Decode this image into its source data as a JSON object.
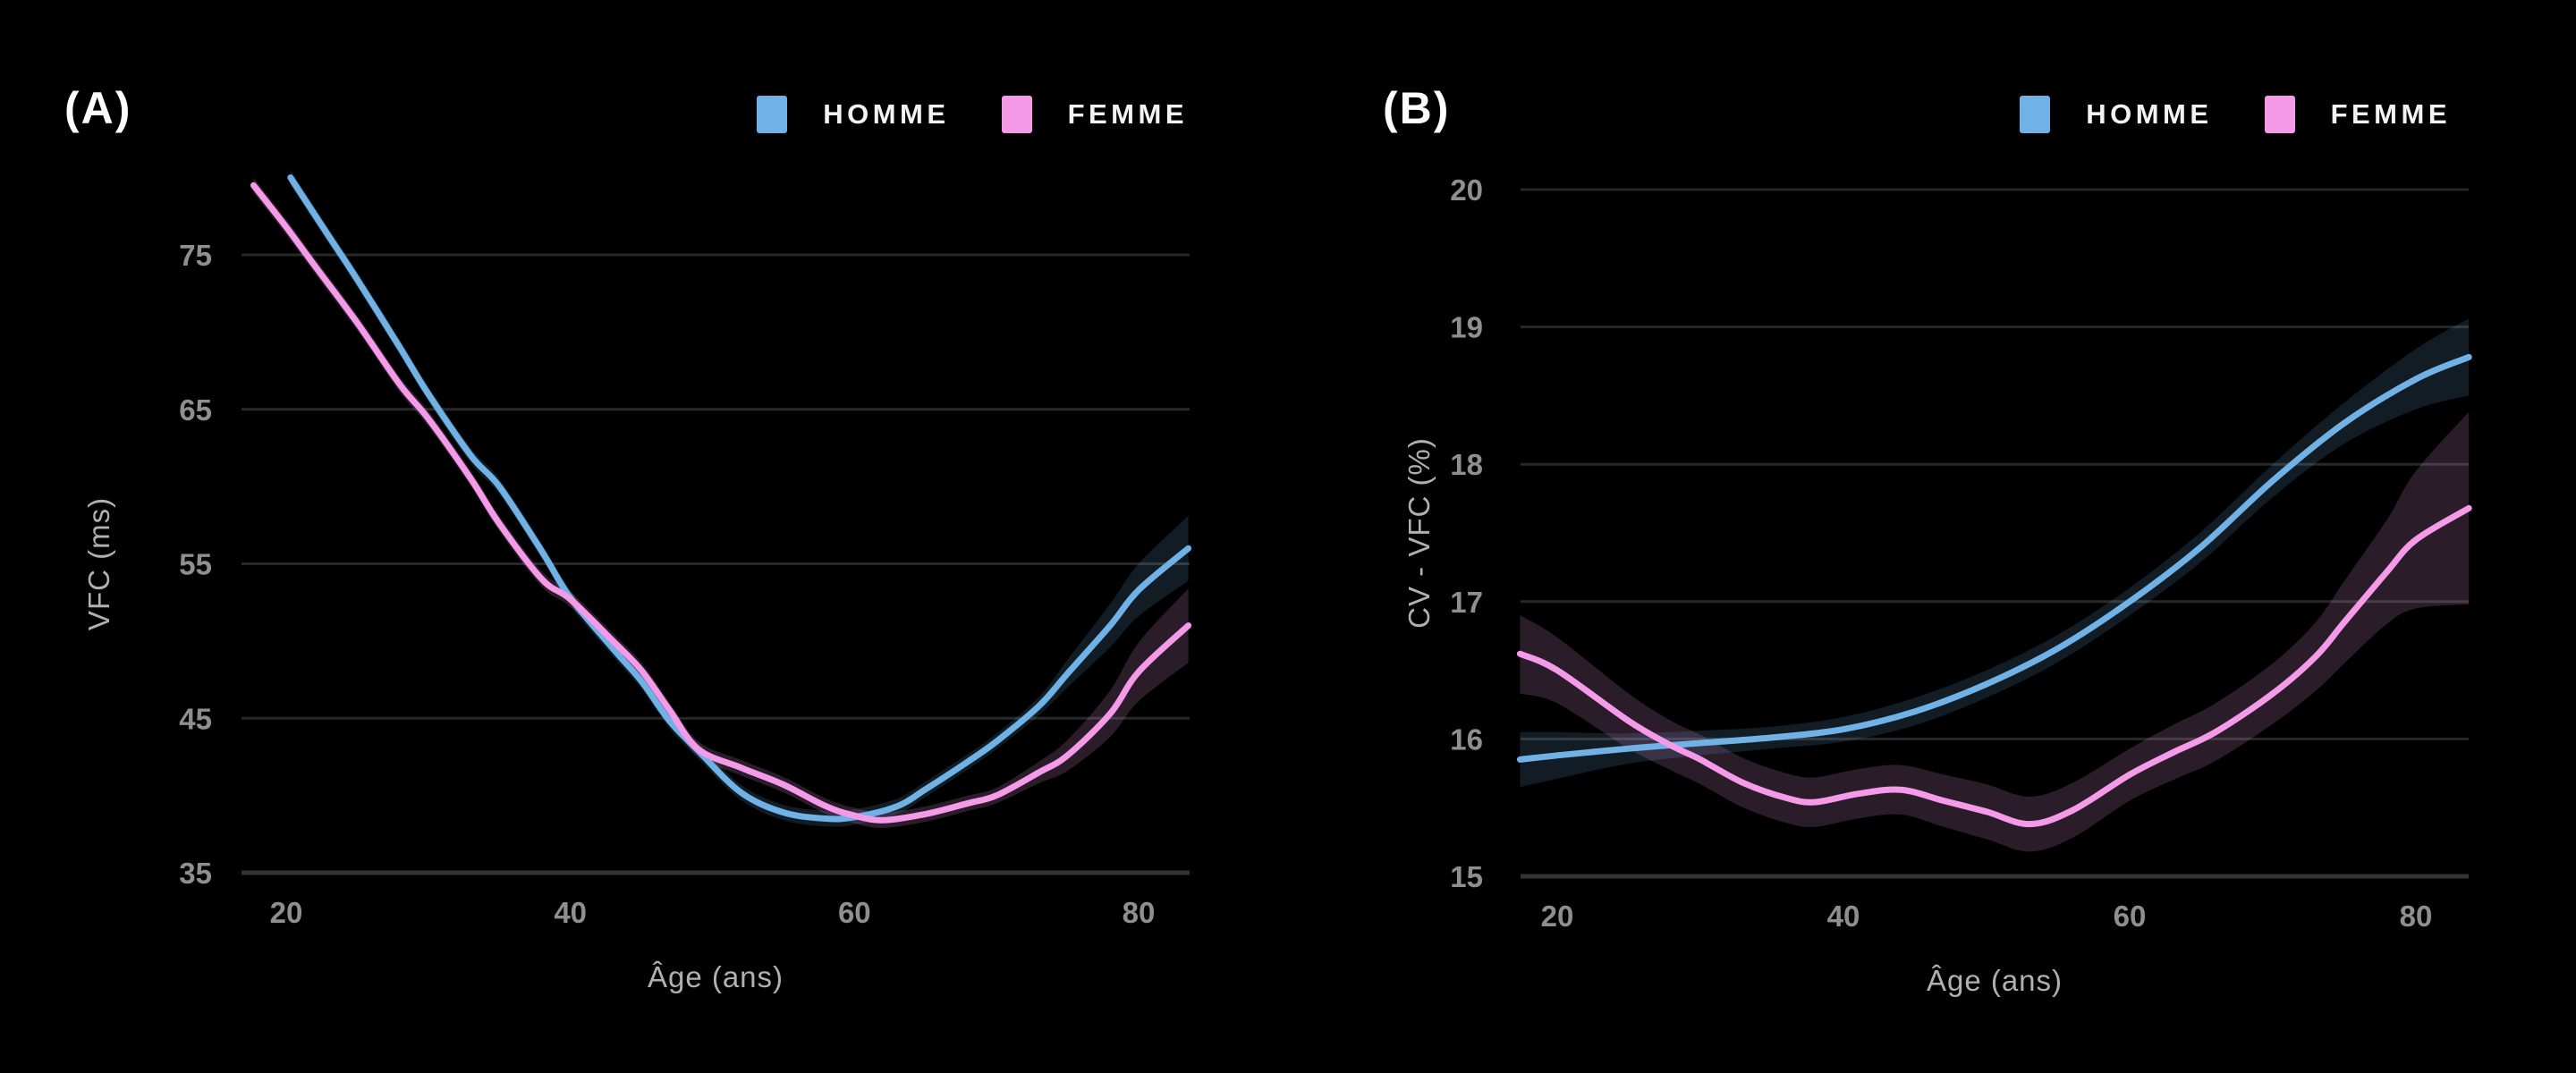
{
  "colors": {
    "background": "#000000",
    "gridline": "#282828",
    "axis_line": "#343434",
    "tick_label": "#8f8f8f",
    "axis_title": "#b0b0b0",
    "panel_label": "#ffffff",
    "legend_text": "#f3f3f3",
    "homme_line": "#70b2e6",
    "homme_band": "rgba(110,175,230,0.16)",
    "femme_line": "#f49ae9",
    "femme_band": "rgba(215,140,210,0.20)"
  },
  "chart_data": [
    {
      "type": "line",
      "panel": "(A)",
      "xlabel": "Âge (ans)",
      "ylabel": "VFC (ms)",
      "x_ticks": [
        20,
        40,
        60,
        80
      ],
      "y_ticks": [
        75,
        65,
        55,
        45,
        35
      ],
      "xlim": [
        17,
        84
      ],
      "ylim": [
        33,
        82
      ],
      "grid": "horizontal",
      "legend_position": "top-right",
      "series": [
        {
          "name": "HOMME",
          "color": "#70b2e6",
          "band_color": "rgba(110,175,230,0.16)",
          "x": [
            20.3,
            23,
            25,
            28,
            30,
            33,
            35,
            38,
            40,
            43,
            45,
            47,
            49,
            52,
            55,
            58,
            60,
            63,
            65,
            68,
            70,
            73,
            75,
            78,
            80,
            83.5
          ],
          "y": [
            80,
            76.2,
            73.4,
            69,
            66,
            62,
            60,
            55.8,
            52.8,
            49.5,
            47.4,
            44.8,
            42.9,
            40.2,
            38.9,
            38.5,
            38.6,
            39.3,
            40.4,
            42.2,
            43.5,
            45.8,
            47.9,
            51,
            53.3,
            56
          ],
          "hi": [
            80.5,
            76.7,
            73.9,
            69.5,
            66.5,
            62.5,
            60.5,
            56.3,
            53.3,
            50,
            47.9,
            45.3,
            43.4,
            40.7,
            39.4,
            39,
            39.1,
            39.8,
            40.9,
            42.7,
            44,
            46.4,
            48.8,
            52.4,
            55,
            58.1
          ],
          "lo": [
            79.5,
            75.7,
            72.9,
            68.5,
            65.5,
            61.5,
            59.5,
            55.3,
            52.3,
            49,
            46.9,
            44.3,
            42.4,
            39.7,
            38.4,
            38,
            38.1,
            38.8,
            39.9,
            41.7,
            43,
            45.2,
            47,
            49.6,
            51.6,
            53.9
          ]
        },
        {
          "name": "FEMME",
          "color": "#f49ae9",
          "band_color": "rgba(215,140,210,0.20)",
          "x": [
            17.7,
            20,
            22,
            25,
            28,
            30,
            33,
            35,
            38,
            40,
            43,
            45,
            47,
            49,
            52,
            55,
            58,
            60,
            62,
            65,
            68,
            70,
            73,
            75,
            78,
            80,
            83.5
          ],
          "y": [
            79.5,
            76.8,
            74.3,
            70.6,
            66.6,
            64.4,
            60.5,
            57.6,
            54,
            52.7,
            50,
            48.1,
            45.5,
            43,
            41.8,
            40.7,
            39.3,
            38.7,
            38.4,
            38.8,
            39.5,
            40,
            41.5,
            42.6,
            45.3,
            48,
            51
          ],
          "hi": [
            80,
            77.3,
            74.8,
            71.1,
            67.1,
            64.9,
            61,
            58.1,
            54.5,
            53.2,
            50.5,
            48.6,
            46,
            43.5,
            42.3,
            41.2,
            39.8,
            39.2,
            38.9,
            39.3,
            40,
            40.5,
            42.2,
            43.6,
            46.8,
            49.9,
            53.4
          ],
          "lo": [
            79,
            76.3,
            73.8,
            70.1,
            66.1,
            63.9,
            60,
            57.1,
            53.5,
            52.2,
            49.5,
            47.6,
            45,
            42.5,
            41.3,
            40.2,
            38.8,
            38.2,
            37.9,
            38.3,
            39,
            39.5,
            40.8,
            41.6,
            43.8,
            46.1,
            48.6
          ]
        }
      ]
    },
    {
      "type": "line",
      "panel": "(B)",
      "xlabel": "Âge (ans)",
      "ylabel": "CV - VFC (%)",
      "x_ticks": [
        20,
        40,
        60,
        80
      ],
      "y_ticks": [
        20,
        19,
        18,
        17,
        16,
        15
      ],
      "xlim": [
        17,
        84
      ],
      "ylim": [
        14.8,
        20
      ],
      "grid": "horizontal",
      "legend_position": "top-right",
      "series": [
        {
          "name": "HOMME",
          "color": "#70b2e6",
          "band_color": "rgba(110,175,230,0.16)",
          "x": [
            17.4,
            20,
            25,
            30,
            35,
            40,
            45,
            50,
            55,
            60,
            65,
            70,
            75,
            80,
            83.7
          ],
          "y": [
            15.85,
            15.88,
            15.93,
            15.97,
            16.01,
            16.07,
            16.2,
            16.4,
            16.66,
            17.0,
            17.4,
            17.88,
            18.3,
            18.62,
            18.78
          ],
          "hi": [
            16.05,
            16.05,
            16.04,
            16.06,
            16.09,
            16.16,
            16.3,
            16.5,
            16.76,
            17.1,
            17.51,
            18.0,
            18.45,
            18.84,
            19.06
          ],
          "lo": [
            15.65,
            15.71,
            15.82,
            15.88,
            15.93,
            15.98,
            16.1,
            16.3,
            16.56,
            16.9,
            17.29,
            17.76,
            18.15,
            18.4,
            18.5
          ]
        },
        {
          "name": "FEMME",
          "color": "#f49ae9",
          "band_color": "rgba(215,140,210,0.20)",
          "x": [
            17.4,
            20,
            25,
            28,
            30,
            33,
            36,
            38,
            41,
            44,
            47,
            50,
            53,
            56,
            60,
            63,
            66,
            70,
            73,
            75,
            78,
            80,
            83.7
          ],
          "y": [
            16.62,
            16.5,
            16.13,
            15.95,
            15.85,
            15.68,
            15.57,
            15.54,
            15.6,
            15.63,
            15.55,
            15.47,
            15.38,
            15.48,
            15.74,
            15.9,
            16.05,
            16.33,
            16.6,
            16.85,
            17.22,
            17.45,
            17.68
          ],
          "hi": [
            16.9,
            16.74,
            16.33,
            16.13,
            16.03,
            15.86,
            15.75,
            15.72,
            15.78,
            15.81,
            15.74,
            15.67,
            15.58,
            15.68,
            15.93,
            16.1,
            16.26,
            16.55,
            16.85,
            17.15,
            17.6,
            17.95,
            18.38
          ],
          "lo": [
            16.33,
            16.26,
            15.93,
            15.77,
            15.67,
            15.5,
            15.39,
            15.36,
            15.42,
            15.45,
            15.36,
            15.27,
            15.18,
            15.28,
            15.55,
            15.7,
            15.84,
            16.11,
            16.35,
            16.55,
            16.84,
            16.95,
            16.98
          ]
        }
      ]
    }
  ]
}
